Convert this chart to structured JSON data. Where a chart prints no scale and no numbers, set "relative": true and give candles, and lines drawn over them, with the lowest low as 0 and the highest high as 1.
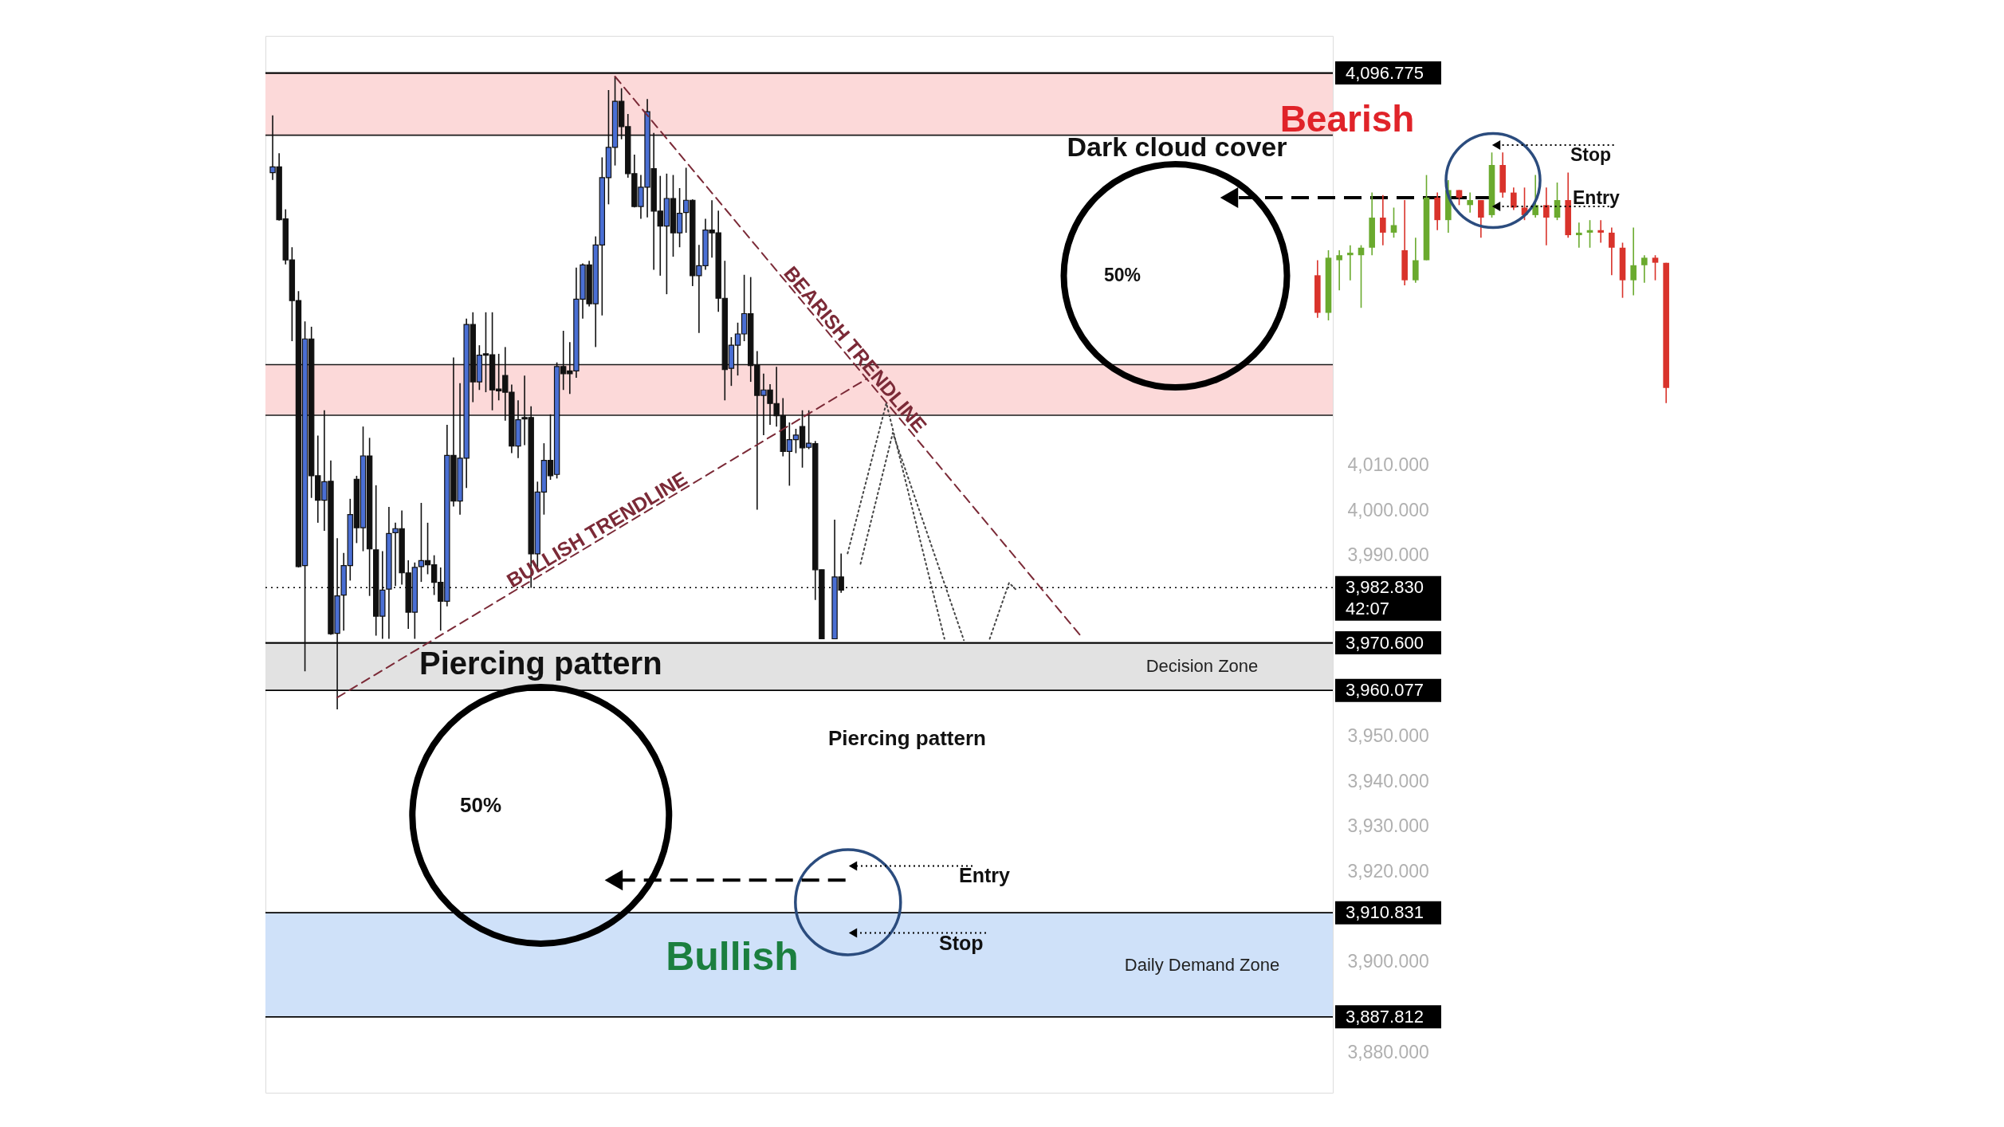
{
  "chart_data": [
    {
      "type": "candlestick",
      "categories": [
        null,
        null,
        null,
        null,
        null,
        null,
        null,
        null,
        null,
        null,
        null,
        null,
        null,
        null,
        null,
        null,
        null,
        null,
        null,
        null,
        null,
        null,
        null,
        null,
        null,
        null,
        null,
        null,
        null,
        null,
        null,
        null,
        null,
        null,
        null,
        null,
        null,
        null,
        null,
        null,
        null,
        null,
        null,
        null,
        null,
        null,
        null,
        null,
        null,
        null,
        null,
        null,
        null,
        null,
        null,
        null,
        null,
        null,
        null,
        null,
        null,
        null,
        null,
        null,
        null,
        null,
        null,
        null,
        null,
        null,
        null,
        null,
        null,
        null,
        null,
        null,
        null,
        null,
        null,
        null,
        null,
        null,
        null,
        null,
        null,
        null,
        null,
        null,
        null,
        null,
        null,
        null,
        null,
        null,
        null,
        null,
        null,
        null,
        null,
        null,
        null,
        null,
        null,
        null,
        null,
        null,
        null,
        null,
        null,
        null,
        null,
        null,
        null,
        null,
        null,
        null,
        null,
        null,
        null,
        null,
        null,
        null,
        null,
        null,
        null,
        null,
        null,
        null,
        null,
        null,
        null,
        null,
        null,
        null,
        null,
        null,
        null,
        null,
        null,
        null,
        null,
        null,
        null,
        null,
        null,
        null,
        null,
        null,
        null,
        null,
        null,
        null,
        null,
        null,
        null,
        null,
        null,
        null,
        null,
        null,
        null,
        null,
        null,
        null
      ],
      "ohlc": [
        [
          4074.7,
          4087.4,
          4073.1,
          4076.0
        ],
        [
          4076.0,
          4079.0,
          4064.1,
          4064.3
        ],
        [
          4064.5,
          4066.6,
          4054.4,
          4055.4
        ],
        [
          4055.4,
          4058.2,
          4037.4,
          4046.4
        ],
        [
          4046.4,
          4048.5,
          3987.3,
          3987.5
        ],
        [
          3987.7,
          4041.8,
          3964.3,
          4037.9
        ],
        [
          4037.9,
          4040.6,
          4002.7,
          4007.6
        ],
        [
          4007.6,
          4016.5,
          3997.2,
          4002.2
        ],
        [
          4002.2,
          4022.1,
          3995.4,
          4006.3
        ],
        [
          4006.4,
          4011.0,
          3972.4,
          3972.6
        ],
        [
          3972.7,
          3993.8,
          3955.9,
          3981.0
        ],
        [
          3981.2,
          3990.5,
          3973.3,
          3987.7
        ],
        [
          3987.7,
          4002.5,
          3984.4,
          3999.0
        ],
        [
          4006.8,
          4007.6,
          3992.7,
          3996.1
        ],
        [
          3996.1,
          4018.5,
          3990.9,
          4012.0
        ],
        [
          4012.0,
          4016.0,
          3981.0,
          3991.4
        ],
        [
          3991.2,
          4005.5,
          3972.2,
          3976.5
        ],
        [
          3976.5,
          3990.9,
          3971.5,
          3982.3
        ],
        [
          3982.5,
          4000.7,
          3971.5,
          3994.8
        ],
        [
          3995.0,
          3997.2,
          3983.2,
          3995.9
        ],
        [
          3995.9,
          3999.9,
          3983.5,
          3986.1
        ],
        [
          3986.1,
          3988.9,
          3973.7,
          3977.4
        ],
        [
          3977.4,
          3988.4,
          3971.5,
          3987.3
        ],
        [
          3987.5,
          4001.6,
          3984.1,
          3988.8
        ],
        [
          3988.8,
          3997.2,
          3985.8,
          3987.9
        ],
        [
          3987.9,
          3990.0,
          3981.2,
          3984.0
        ],
        [
          3984.0,
          3987.3,
          3973.3,
          3979.8
        ],
        [
          3979.8,
          4018.9,
          3978.7,
          4012.1
        ],
        [
          4012.1,
          4033.8,
          4000.8,
          4002.0
        ],
        [
          4002.0,
          4028.1,
          3999.0,
          4011.5
        ],
        [
          4011.5,
          4042.4,
          4004.9,
          4041.1
        ],
        [
          4041.1,
          4043.8,
          4023.9,
          4028.4
        ],
        [
          4028.4,
          4036.5,
          4026.6,
          4034.3
        ],
        [
          4034.6,
          4043.8,
          4026.1,
          4034.3
        ],
        [
          4034.4,
          4043.8,
          4022.1,
          4026.6
        ],
        [
          4026.8,
          4034.6,
          4024.3,
          4026.4
        ],
        [
          4029.8,
          4036.1,
          4019.8,
          4026.1
        ],
        [
          4026.1,
          4027.8,
          4012.6,
          4014.2
        ],
        [
          4014.2,
          4024.3,
          4011.5,
          4020.0
        ],
        [
          4020.5,
          4029.8,
          4014.4,
          4020.2
        ],
        [
          4020.5,
          4023.0,
          3982.8,
          3990.3
        ],
        [
          3990.3,
          4006.3,
          3986.4,
          4004.0
        ],
        [
          4004.0,
          4014.8,
          3999.0,
          4011.0
        ],
        [
          4011.0,
          4021.2,
          4006.7,
          4007.6
        ],
        [
          4007.9,
          4032.7,
          4007.0,
          4031.8
        ],
        [
          4031.8,
          4039.7,
          4026.6,
          4030.2
        ],
        [
          4030.8,
          4037.2,
          4025.7,
          4030.2
        ],
        [
          4030.8,
          4053.7,
          4029.3,
          4046.7
        ],
        [
          4046.7,
          4054.6,
          4042.4,
          4054.3
        ],
        [
          4054.3,
          4055.2,
          4045.1,
          4045.7
        ],
        [
          4045.7,
          4060.6,
          4036.1,
          4058.7
        ],
        [
          4058.7,
          4078.1,
          4043.1,
          4073.6
        ],
        [
          4073.6,
          4093.0,
          4067.7,
          4080.3
        ],
        [
          4080.3,
          4096.0,
          4076.3,
          4090.5
        ],
        [
          4090.5,
          4093.4,
          4082.1,
          4084.9
        ],
        [
          4084.9,
          4087.7,
          4073.6,
          4074.5
        ],
        [
          4074.5,
          4078.7,
          4067.0,
          4067.2
        ],
        [
          4067.2,
          4074.2,
          4064.5,
          4071.5
        ],
        [
          4071.5,
          4091.0,
          4064.8,
          4088.2
        ],
        [
          4075.6,
          4083.5,
          4053.2,
          4066.2
        ],
        [
          4066.2,
          4074.0,
          4051.9,
          4062.9
        ],
        [
          4062.9,
          4074.5,
          4047.8,
          4069.0
        ],
        [
          4069.0,
          4074.2,
          4056.1,
          4061.4
        ],
        [
          4061.4,
          4071.3,
          4058.2,
          4065.7
        ],
        [
          4065.9,
          4075.8,
          4061.4,
          4068.6
        ],
        [
          4068.6,
          4068.8,
          4049.6,
          4051.9
        ],
        [
          4051.9,
          4058.7,
          4039.2,
          4054.1
        ],
        [
          4054.1,
          4064.5,
          4053.2,
          4062.0
        ],
        [
          4062.0,
          4068.6,
          4055.9,
          4061.4
        ],
        [
          4061.4,
          4066.3,
          4043.9,
          4046.9
        ],
        [
          4046.9,
          4055.2,
          4024.3,
          4031.1
        ],
        [
          4031.4,
          4038.3,
          4027.5,
          4036.5
        ],
        [
          4036.5,
          4041.5,
          4029.8,
          4039.0
        ],
        [
          4039.0,
          4052.1,
          4037.4,
          4043.5
        ],
        [
          4043.5,
          4051.6,
          4028.4,
          4032.0
        ],
        [
          4032.0,
          4035.2,
          4000.1,
          4025.4
        ],
        [
          4025.4,
          4030.2,
          4016.6,
          4026.6
        ],
        [
          4026.6,
          4027.9,
          4018.9,
          4023.6
        ],
        [
          4023.6,
          4031.7,
          4018.5,
          4020.9
        ],
        [
          4020.9,
          4024.8,
          4011.9,
          4013.0
        ],
        [
          4013.0,
          4019.4,
          4005.4,
          4015.6
        ],
        [
          4015.6,
          4018.0,
          4012.6,
          4016.6
        ],
        [
          4018.5,
          4022.1,
          4009.4,
          4013.8
        ],
        [
          4013.9,
          4022.1,
          4013.5,
          4014.8
        ],
        [
          4014.7,
          4015.3,
          3980.1,
          3986.8
        ],
        [
          3986.8,
          3986.8,
          3971.5,
          3971.5
        ],
        null,
        [
          3971.5,
          3997.9,
          3971.5,
          3985.2
        ],
        [
          3985.2,
          3990.4,
          3981.7,
          3982.3
        ],
        null,
        null,
        null,
        null,
        null,
        null,
        null,
        null,
        null,
        null,
        null,
        null,
        null,
        null,
        null,
        null,
        null,
        null,
        null,
        null,
        null,
        null,
        null,
        null,
        null,
        null,
        null,
        null,
        null,
        null,
        null,
        null,
        null,
        null,
        null,
        null,
        null,
        null,
        null,
        null,
        null,
        null,
        null,
        null,
        null,
        null,
        null,
        null,
        null,
        null,
        null,
        null,
        null,
        null,
        null,
        null,
        null,
        null,
        null,
        null,
        null,
        null,
        null,
        null,
        null,
        null,
        null,
        null,
        null,
        null,
        null,
        null,
        null,
        null,
        null
      ],
      "colors": [
        "#4a6fd4",
        "#111111",
        "#111111",
        "#111111",
        "#111111",
        "#4a6fd4",
        "#111111",
        "#111111",
        "#4a6fd4",
        "#111111",
        "#4a6fd4",
        "#4a6fd4",
        "#4a6fd4",
        "#111111",
        "#4a6fd4",
        "#111111",
        "#111111",
        "#4a6fd4",
        "#4a6fd4",
        "#4a6fd4",
        "#111111",
        "#111111",
        "#4a6fd4",
        "#4a6fd4",
        "#111111",
        "#111111",
        "#111111",
        "#4a6fd4",
        "#111111",
        "#4a6fd4",
        "#4a6fd4",
        "#111111",
        "#4a6fd4",
        "#111111",
        "#111111",
        "#111111",
        "#111111",
        "#111111",
        "#4a6fd4",
        "#111111",
        "#111111",
        "#4a6fd4",
        "#4a6fd4",
        "#111111",
        "#4a6fd4",
        "#111111",
        "#111111",
        "#4a6fd4",
        "#4a6fd4",
        "#111111",
        "#4a6fd4",
        "#4a6fd4",
        "#4a6fd4",
        "#4a6fd4",
        "#111111",
        "#111111",
        "#111111",
        "#4a6fd4",
        "#4a6fd4",
        "#111111",
        "#111111",
        "#4a6fd4",
        "#111111",
        "#4a6fd4",
        "#4a6fd4",
        "#111111",
        "#4a6fd4",
        "#4a6fd4",
        "#111111",
        "#111111",
        "#111111",
        "#4a6fd4",
        "#4a6fd4",
        "#4a6fd4",
        "#111111",
        "#111111",
        "#4a6fd4",
        "#111111",
        "#111111",
        "#111111",
        "#4a6fd4",
        "#4a6fd4",
        "#111111",
        "#4a6fd4",
        "#111111",
        "#111111",
        null,
        "#4a6fd4",
        "#111111",
        null,
        null,
        null,
        null,
        null,
        null,
        null,
        null,
        null,
        null,
        null,
        null,
        null,
        null,
        null,
        null,
        null,
        null,
        null,
        null,
        null,
        null,
        null,
        null,
        null,
        null,
        null,
        null,
        null,
        null,
        null,
        null,
        null,
        null,
        null,
        null,
        null,
        null,
        null,
        null,
        null,
        null,
        null,
        null,
        null,
        null,
        null,
        null,
        null,
        null,
        null,
        null,
        null,
        null,
        null,
        null,
        null,
        null,
        null,
        null,
        null,
        null,
        null,
        null,
        null,
        null,
        null,
        null,
        null,
        null,
        null,
        null,
        null,
        null,
        null
      ],
      "color": "#111111",
      "ylim": [
        3871,
        4105
      ],
      "yticks": [
        {
          "value": 3880,
          "label": "3,880.000"
        },
        {
          "value": 3900,
          "label": "3,900.000"
        },
        {
          "value": 3920,
          "label": "3,920.000"
        },
        {
          "value": 3930,
          "label": "3,930.000"
        },
        {
          "value": 3940,
          "label": "3,940.000"
        },
        {
          "value": 3950,
          "label": "3,950.000"
        },
        {
          "value": 3990,
          "label": "3,990.000"
        },
        {
          "value": 4000,
          "label": "4,000.000"
        },
        {
          "value": 4010,
          "label": "4,010.000"
        }
      ],
      "series": [
        {
          "name": "BEARISH TRENDLINE",
          "type": "line",
          "color": "#7b2a37",
          "line_style": "dashed",
          "values": [
            null,
            null,
            null,
            null,
            null,
            null,
            null,
            null,
            null,
            null,
            null,
            null,
            null,
            null,
            null,
            null,
            null,
            null,
            null,
            null,
            null,
            null,
            null,
            null,
            null,
            null,
            null,
            null,
            null,
            null,
            null,
            null,
            null,
            null,
            null,
            null,
            null,
            null,
            null,
            null,
            null,
            null,
            null,
            null,
            null,
            null,
            null,
            null,
            null,
            null,
            null,
            null,
            null,
            4096.0,
            null,
            null,
            null,
            null,
            null,
            null,
            null,
            null,
            null,
            null,
            null,
            null,
            null,
            null,
            null,
            null,
            null,
            null,
            null,
            null,
            null,
            null,
            null,
            null,
            null,
            null,
            null,
            null,
            null,
            null,
            null,
            null,
            null,
            null,
            null,
            null,
            null,
            null,
            null,
            null,
            null,
            null,
            null,
            null,
            null,
            null,
            null,
            null,
            null,
            null,
            null,
            null,
            null,
            null,
            null,
            null,
            null,
            null,
            null,
            null,
            null,
            null,
            null,
            null,
            null,
            null,
            null,
            null,
            null,
            null,
            null,
            3972.3,
            null,
            null,
            null,
            null,
            null,
            null,
            null,
            null,
            null,
            null,
            null,
            null,
            null,
            null,
            null,
            null,
            null,
            null,
            null,
            null,
            null,
            null,
            null,
            null,
            null,
            null,
            null,
            null,
            null,
            null,
            null,
            null,
            null,
            null,
            null,
            null,
            null,
            null
          ]
        },
        {
          "name": "BULLISH TRENDLINE",
          "type": "line",
          "color": "#7b2a37",
          "line_style": "dashed",
          "values": [
            null,
            null,
            null,
            null,
            null,
            null,
            null,
            null,
            null,
            null,
            3958.5,
            null,
            null,
            null,
            null,
            null,
            null,
            null,
            null,
            null,
            null,
            null,
            null,
            null,
            null,
            null,
            null,
            null,
            null,
            null,
            null,
            null,
            null,
            null,
            null,
            null,
            null,
            null,
            null,
            null,
            null,
            null,
            null,
            null,
            null,
            null,
            null,
            null,
            null,
            null,
            null,
            null,
            null,
            null,
            null,
            null,
            null,
            null,
            null,
            null,
            null,
            null,
            null,
            null,
            null,
            null,
            null,
            null,
            null,
            null,
            null,
            null,
            null,
            null,
            null,
            null,
            null,
            null,
            null,
            null,
            null,
            null,
            null,
            null,
            null,
            null,
            null,
            null,
            null,
            null,
            null,
            null,
            4029.1,
            null,
            null,
            null,
            null,
            null,
            null,
            null,
            null,
            null,
            null,
            null,
            null,
            null,
            null,
            null,
            null,
            null,
            null,
            null,
            null,
            null,
            null,
            null,
            null,
            null,
            null,
            null,
            null,
            null,
            null,
            null,
            null,
            null,
            null,
            null,
            null,
            null,
            null,
            null,
            null,
            null,
            null,
            null,
            null,
            null,
            null,
            null,
            null,
            null,
            null,
            null,
            null,
            null,
            null,
            null,
            null,
            null,
            null,
            null,
            null,
            null,
            null,
            null,
            null,
            null,
            null,
            null,
            null,
            null,
            null,
            null
          ]
        },
        {
          "type": "line",
          "color": "#444444",
          "line_style": "dotted",
          "values": [
            null,
            null,
            null,
            null,
            null,
            null,
            null,
            null,
            null,
            null,
            null,
            null,
            null,
            null,
            null,
            null,
            null,
            null,
            null,
            null,
            null,
            null,
            null,
            null,
            null,
            null,
            null,
            null,
            null,
            null,
            null,
            null,
            null,
            null,
            null,
            null,
            null,
            null,
            null,
            null,
            null,
            null,
            null,
            null,
            null,
            null,
            null,
            null,
            null,
            null,
            null,
            null,
            null,
            null,
            null,
            null,
            null,
            null,
            null,
            null,
            null,
            null,
            null,
            null,
            null,
            null,
            null,
            null,
            null,
            null,
            null,
            null,
            null,
            null,
            null,
            null,
            null,
            null,
            null,
            null,
            null,
            null,
            null,
            null,
            null,
            null,
            null,
            null,
            null,
            3990.4,
            null,
            null,
            null,
            null,
            null,
            4023.7,
            null,
            null,
            null,
            null,
            null,
            null,
            null,
            null,
            3971.5,
            null,
            null,
            null,
            null,
            null,
            null,
            null,
            null,
            null,
            null,
            null,
            null,
            null,
            null,
            null,
            null,
            null,
            null,
            null,
            null,
            null,
            null,
            null,
            null,
            null,
            null,
            null,
            null,
            null,
            null,
            null,
            null,
            null,
            null,
            null,
            null,
            null,
            null,
            null,
            null,
            null,
            null,
            null,
            null,
            null,
            null,
            null,
            null,
            null,
            null,
            null,
            null,
            null,
            null,
            null,
            null,
            null,
            null,
            null
          ]
        },
        {
          "type": "line",
          "color": "#444444",
          "line_style": "dotted",
          "values": [
            null,
            null,
            null,
            null,
            null,
            null,
            null,
            null,
            null,
            null,
            null,
            null,
            null,
            null,
            null,
            null,
            null,
            null,
            null,
            null,
            null,
            null,
            null,
            null,
            null,
            null,
            null,
            null,
            null,
            null,
            null,
            null,
            null,
            null,
            null,
            null,
            null,
            null,
            null,
            null,
            null,
            null,
            null,
            null,
            null,
            null,
            null,
            null,
            null,
            null,
            null,
            null,
            null,
            null,
            null,
            null,
            null,
            null,
            null,
            null,
            null,
            null,
            null,
            null,
            null,
            null,
            null,
            null,
            null,
            null,
            null,
            null,
            null,
            null,
            null,
            null,
            null,
            null,
            null,
            null,
            null,
            null,
            null,
            null,
            null,
            null,
            null,
            null,
            null,
            null,
            null,
            3988.1,
            null,
            null,
            null,
            null,
            4017.1,
            null,
            null,
            null,
            null,
            null,
            null,
            null,
            null,
            null,
            null,
            3971.2,
            null,
            null,
            null,
            null,
            null,
            null,
            null,
            null,
            null,
            null,
            null,
            null,
            null,
            null,
            null,
            null,
            null,
            null,
            null,
            null,
            null,
            null,
            null,
            null,
            null,
            null,
            null,
            null,
            null,
            null,
            null,
            null,
            null,
            null,
            null,
            null,
            null,
            null,
            null,
            null,
            null,
            null,
            null,
            null,
            null,
            null,
            null,
            null,
            null,
            null,
            null,
            null,
            null,
            null,
            null,
            null
          ]
        },
        {
          "type": "line",
          "color": "#444444",
          "line_style": "dotted",
          "values": [
            null,
            null,
            null,
            null,
            null,
            null,
            null,
            null,
            null,
            null,
            null,
            null,
            null,
            null,
            null,
            null,
            null,
            null,
            null,
            null,
            null,
            null,
            null,
            null,
            null,
            null,
            null,
            null,
            null,
            null,
            null,
            null,
            null,
            null,
            null,
            null,
            null,
            null,
            null,
            null,
            null,
            null,
            null,
            null,
            null,
            null,
            null,
            null,
            null,
            null,
            null,
            null,
            null,
            null,
            null,
            null,
            null,
            null,
            null,
            null,
            null,
            null,
            null,
            null,
            null,
            null,
            null,
            null,
            null,
            null,
            null,
            null,
            null,
            null,
            null,
            null,
            null,
            null,
            null,
            null,
            null,
            null,
            null,
            null,
            null,
            null,
            null,
            null,
            null,
            null,
            null,
            null,
            null,
            null,
            null,
            null,
            null,
            null,
            null,
            null,
            null,
            null,
            null,
            null,
            null,
            null,
            null,
            null,
            null,
            null,
            null,
            3971.5,
            null,
            null,
            3983.9,
            3982.5,
            null,
            null,
            null,
            null,
            null,
            null,
            null,
            null,
            null,
            null,
            null,
            null,
            null,
            null,
            null,
            null,
            null,
            null,
            null,
            null,
            null,
            null,
            null,
            null,
            null,
            null,
            null,
            null,
            null,
            null,
            null,
            null,
            null,
            null,
            null,
            null,
            null,
            null,
            null,
            null,
            null,
            null,
            null,
            null,
            null,
            null,
            null,
            null
          ]
        }
      ],
      "bands": [
        {
          "axis": "y",
          "from": 4083.0,
          "to": 4096.775,
          "color": "#fcd9d9"
        },
        {
          "axis": "y",
          "from": 4021.0,
          "to": 4032.2,
          "color": "#fcd9d9"
        },
        {
          "axis": "y",
          "from": 3960.077,
          "to": 3970.6,
          "label": "Decision Zone",
          "color": "#e2e2e2"
        },
        {
          "axis": "y",
          "from": 3887.812,
          "to": 3910.831,
          "label": "Daily Demand Zone",
          "color": "#cfe1f9"
        }
      ],
      "ref_lines": [
        {
          "axis": "y",
          "value": 4096.775,
          "label": "4,096.775"
        },
        {
          "axis": "y",
          "value": 3982.83,
          "label": "3,982.830\n42:07",
          "line_style": "dotted"
        },
        {
          "axis": "y",
          "value": 3970.6,
          "label": "3,970.600"
        },
        {
          "axis": "y",
          "value": 3960.077,
          "label": "3,960.077"
        },
        {
          "axis": "y",
          "value": 3910.831,
          "label": "3,910.831"
        },
        {
          "axis": "y",
          "value": 3887.812,
          "label": "3,887.812"
        }
      ],
      "annotations": [
        "Piercing pattern",
        "50%",
        "Piercing pattern",
        "Entry",
        "Stop",
        "Bullish",
        "Dark cloud cover",
        "50%"
      ]
    },
    {
      "type": "candlestick",
      "relative": true,
      "categories": [
        null,
        null,
        null,
        null,
        null,
        null,
        null,
        null,
        null,
        null,
        null,
        null,
        null,
        null,
        null,
        null,
        null,
        null,
        null,
        null,
        null,
        null,
        null,
        null,
        null,
        null,
        null,
        null,
        null,
        null,
        null,
        null,
        null
      ],
      "ohlc": [
        [
          0.51,
          0.57,
          0.34,
          0.36
        ],
        [
          0.36,
          0.61,
          0.33,
          0.58
        ],
        [
          0.57,
          0.61,
          0.45,
          0.59
        ],
        [
          0.59,
          0.63,
          0.49,
          0.6
        ],
        [
          0.59,
          0.63,
          0.38,
          0.62
        ],
        [
          0.62,
          0.84,
          0.59,
          0.74
        ],
        [
          0.74,
          0.83,
          0.63,
          0.68
        ],
        [
          0.68,
          0.78,
          0.66,
          0.71
        ],
        [
          0.61,
          0.81,
          0.47,
          0.49
        ],
        [
          0.49,
          0.66,
          0.48,
          0.57
        ],
        [
          0.57,
          0.91,
          0.57,
          0.82
        ],
        [
          0.82,
          0.84,
          0.69,
          0.73
        ],
        [
          0.73,
          0.89,
          0.68,
          0.85
        ],
        [
          0.85,
          0.85,
          0.79,
          0.82
        ],
        [
          0.79,
          0.84,
          0.76,
          0.81
        ],
        [
          0.81,
          0.81,
          0.66,
          0.74
        ],
        [
          0.75,
          1.0,
          0.74,
          0.95
        ],
        [
          0.95,
          1.0,
          0.82,
          0.84
        ],
        [
          0.84,
          0.86,
          0.77,
          0.78
        ],
        [
          0.78,
          0.86,
          0.73,
          0.75
        ],
        [
          0.75,
          0.91,
          0.74,
          0.79
        ],
        [
          0.79,
          0.86,
          0.63,
          0.74
        ],
        [
          0.74,
          0.88,
          0.73,
          0.81
        ],
        [
          0.81,
          0.92,
          0.66,
          0.67
        ],
        [
          0.67,
          0.72,
          0.62,
          0.68
        ],
        [
          0.68,
          0.73,
          0.62,
          0.69
        ],
        [
          0.69,
          0.73,
          0.64,
          0.68
        ],
        [
          0.68,
          0.7,
          0.51,
          0.62
        ],
        [
          0.62,
          0.64,
          0.42,
          0.49
        ],
        [
          0.49,
          0.7,
          0.43,
          0.55
        ],
        [
          0.55,
          0.59,
          0.48,
          0.58
        ],
        [
          0.58,
          0.59,
          0.49,
          0.56
        ],
        [
          0.56,
          0.56,
          0.0,
          0.06
        ]
      ],
      "colors": [
        "#d9332b",
        "#6aaa2e",
        "#6aaa2e",
        "#6aaa2e",
        "#6aaa2e",
        "#6aaa2e",
        "#d9332b",
        "#6aaa2e",
        "#d9332b",
        "#6aaa2e",
        "#6aaa2e",
        "#d9332b",
        "#6aaa2e",
        "#d9332b",
        "#6aaa2e",
        "#d9332b",
        "#6aaa2e",
        "#d9332b",
        "#d9332b",
        "#d9332b",
        "#6aaa2e",
        "#d9332b",
        "#6aaa2e",
        "#d9332b",
        "#6aaa2e",
        "#6aaa2e",
        "#d9332b",
        "#d9332b",
        "#d9332b",
        "#6aaa2e",
        "#6aaa2e",
        "#d9332b",
        "#d9332b"
      ],
      "annotations": [
        "Bearish",
        "Stop",
        "Entry"
      ]
    }
  ]
}
